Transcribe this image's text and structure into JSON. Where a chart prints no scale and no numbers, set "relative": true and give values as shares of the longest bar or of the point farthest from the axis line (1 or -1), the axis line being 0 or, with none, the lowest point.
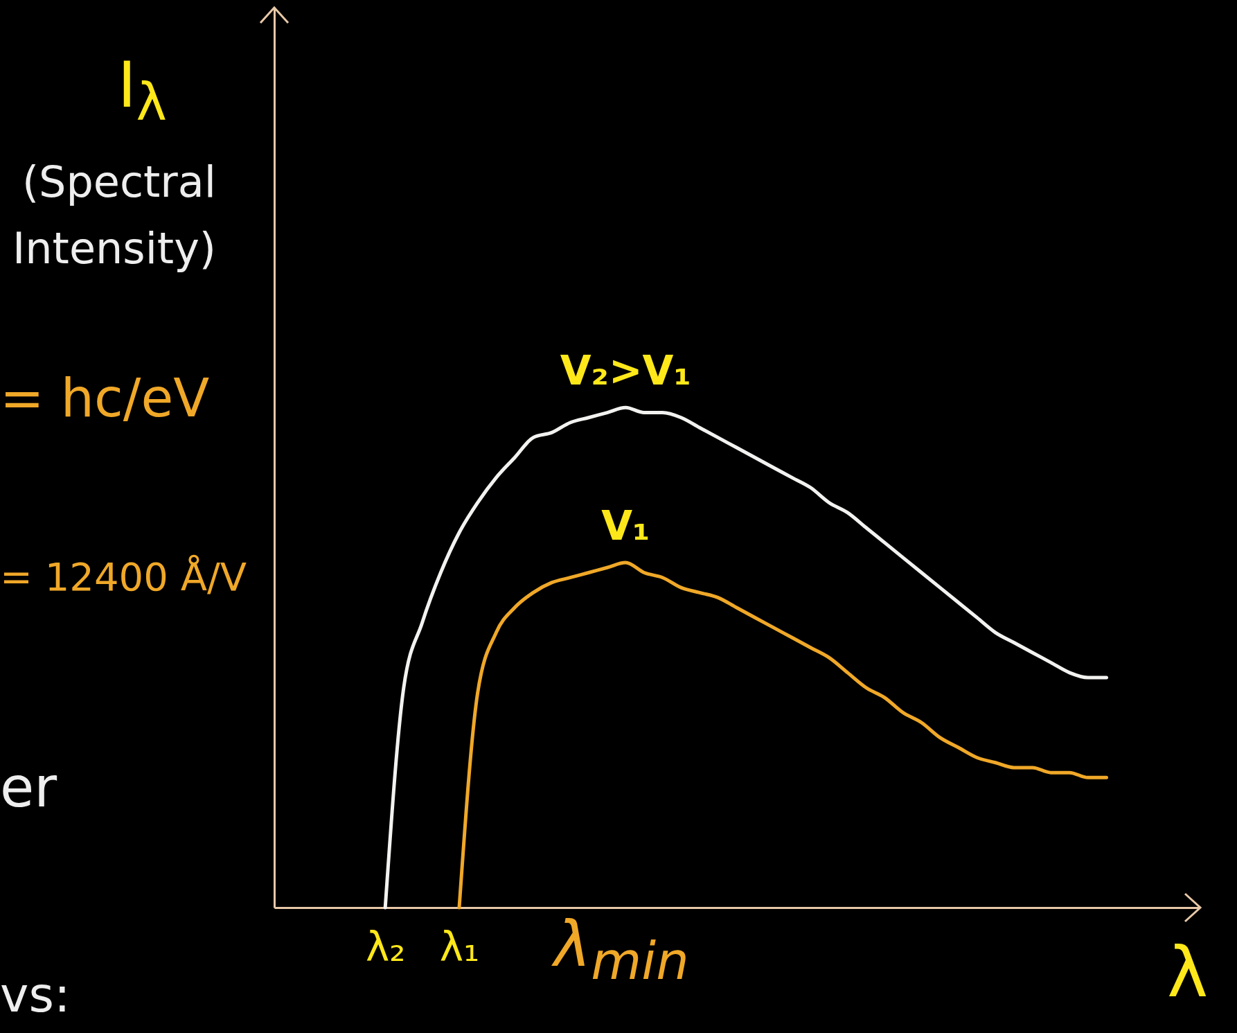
{
  "chart_data": {
    "type": "line",
    "relative": true,
    "ylabel": "I$_{λ}$ (Spectral Intensity)",
    "xlabel": "λ",
    "categories": [
      null,
      null,
      null,
      null,
      null,
      null,
      "λ₂",
      null,
      null,
      null,
      "λ₁",
      null,
      null,
      null,
      null,
      null,
      null,
      null,
      null,
      null,
      null,
      null,
      null,
      null,
      null,
      null,
      null,
      null,
      null,
      null,
      null,
      null,
      null,
      null,
      null,
      null,
      null,
      null,
      null,
      null,
      null,
      null,
      null,
      null,
      null,
      null,
      null,
      null,
      null,
      null,
      null
    ],
    "marker": "none",
    "line_style": "solid",
    "annotations": [
      "= hc/eV",
      "= 12400 Å/V",
      "er",
      "vs:",
      "λ$_{min}$"
    ],
    "series": [
      {
        "name": "V₂>V₁",
        "color": "#f2f2f0",
        "values": [
          null,
          null,
          null,
          null,
          null,
          null,
          0,
          0.44,
          0.57,
          0.67,
          0.75,
          0.81,
          0.86,
          0.9,
          0.94,
          0.95,
          0.97,
          0.98,
          0.99,
          1.0,
          0.99,
          0.99,
          0.98,
          0.96,
          0.94,
          0.92,
          0.9,
          0.88,
          0.86,
          0.84,
          0.81,
          0.79,
          0.76,
          0.73,
          0.7,
          0.67,
          0.64,
          0.61,
          0.58,
          0.55,
          0.53,
          0.51,
          0.49,
          0.47,
          0.46,
          0.46,
          null,
          null,
          null,
          null,
          null
        ]
      },
      {
        "name": "V₁",
        "color": "#f0a828",
        "values": [
          null,
          null,
          null,
          null,
          null,
          null,
          null,
          null,
          null,
          null,
          0,
          0.43,
          0.55,
          0.6,
          0.63,
          0.65,
          0.66,
          0.67,
          0.68,
          0.69,
          0.67,
          0.66,
          0.64,
          0.63,
          0.62,
          0.6,
          0.58,
          0.56,
          0.54,
          0.52,
          0.5,
          0.47,
          0.44,
          0.42,
          0.39,
          0.37,
          0.34,
          0.32,
          0.3,
          0.29,
          0.28,
          0.28,
          0.27,
          0.27,
          0.26,
          0.26,
          null,
          null,
          null,
          null,
          null
        ]
      }
    ]
  }
}
